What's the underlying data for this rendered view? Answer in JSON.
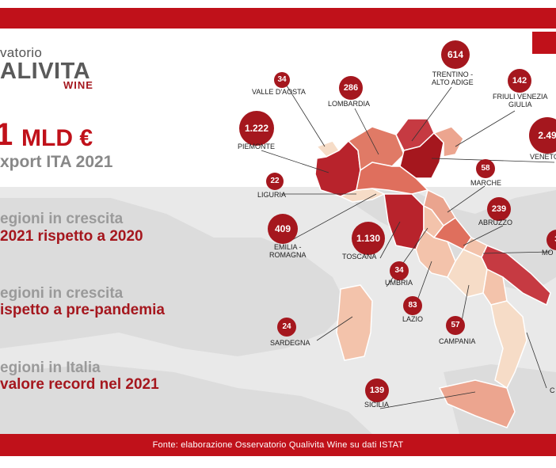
{
  "logo": {
    "line1": "vatorio",
    "line2": "ALIVITA",
    "line3": "WINE"
  },
  "headline": {
    "number": "1",
    "unit": "MLD €",
    "subtitle": "xport ITA 2021"
  },
  "stats": [
    {
      "gray": "egioni in crescita",
      "red": "2021 rispetto a 2020"
    },
    {
      "gray": "egioni in crescita",
      "red": "ispetto a pre-pandemia"
    },
    {
      "gray": "egioni in Italia",
      "red": "valore record nel 2021"
    }
  ],
  "regions": [
    {
      "name": "VALLE D'AOSTA",
      "value": "34"
    },
    {
      "name": "LOMBARDIA",
      "value": "286"
    },
    {
      "name": "TRENTINO -\nALTO ADIGE",
      "value": "614"
    },
    {
      "name": "FRIULI  VENEZIA\nGIULIA",
      "value": "142"
    },
    {
      "name": "PIEMONTE",
      "value": "1.222"
    },
    {
      "name": "VENETO",
      "value": "2.49"
    },
    {
      "name": "LIGURIA",
      "value": "22"
    },
    {
      "name": "MARCHE",
      "value": "58"
    },
    {
      "name": "ABRUZZO",
      "value": "239"
    },
    {
      "name": "MO",
      "value": "3"
    },
    {
      "name": "EMILIA -\nROMAGNA",
      "value": "409"
    },
    {
      "name": "TOSCANA",
      "value": "1.130"
    },
    {
      "name": "UMBRIA",
      "value": "34"
    },
    {
      "name": "LAZIO",
      "value": "83"
    },
    {
      "name": "CAMPANIA",
      "value": "57"
    },
    {
      "name": "SARDEGNA",
      "value": "24"
    },
    {
      "name": "SICILIA",
      "value": "139"
    },
    {
      "name": "C",
      "value": ""
    }
  ],
  "footer": "Fonte: elaborazione Osservatorio Qualivita Wine su dati ISTAT",
  "colors": {
    "red": "#c0111a",
    "dark_red": "#a5171e",
    "band": "#e9e9e9"
  }
}
